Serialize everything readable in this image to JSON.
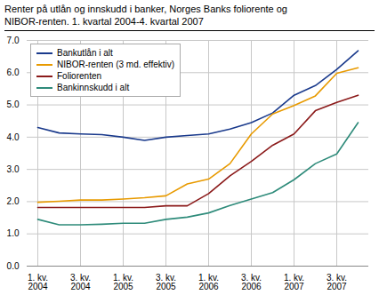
{
  "chart_data": {
    "type": "line",
    "title": "Renter på utlån og innskudd i banker, Norges Banks foliorente og",
    "subtitle": "NIBOR-renten. 1. kvartal 2004-4. kvartal 2007",
    "categories": [
      "1. kv.\n2004",
      null,
      "3. kv.\n2004",
      null,
      "1. kv.\n2005",
      null,
      "3. kv.\n2005",
      null,
      "1. kv.\n2006",
      null,
      "3. kv.\n2006",
      null,
      "1. kv.\n2007",
      null,
      "3. kv.\n2007",
      null
    ],
    "series": [
      {
        "name": "Bankutlån i alt",
        "color": "#1a3a8c",
        "values": [
          4.3,
          4.13,
          4.1,
          4.08,
          4.0,
          3.9,
          4.0,
          4.05,
          4.1,
          4.25,
          4.45,
          4.75,
          5.3,
          5.6,
          6.1,
          6.68
        ]
      },
      {
        "name": "NIBOR-renten (3 md. effektiv)",
        "color": "#e89a00",
        "values": [
          1.98,
          2.01,
          2.05,
          2.05,
          2.08,
          2.12,
          2.18,
          2.55,
          2.7,
          3.18,
          4.1,
          4.72,
          4.98,
          5.28,
          5.98,
          6.15
        ]
      },
      {
        "name": "Foliorenten",
        "color": "#8b1a1a",
        "values": [
          1.82,
          1.82,
          1.82,
          1.82,
          1.82,
          1.82,
          1.87,
          1.87,
          2.25,
          2.8,
          3.25,
          3.75,
          4.1,
          4.82,
          5.08,
          5.3
        ]
      },
      {
        "name": "Bankinnskudd i alt",
        "color": "#2e8b7a",
        "values": [
          1.45,
          1.28,
          1.28,
          1.3,
          1.33,
          1.33,
          1.45,
          1.52,
          1.65,
          1.88,
          2.08,
          2.28,
          2.68,
          3.18,
          3.48,
          4.45
        ]
      }
    ],
    "ylim": [
      0,
      7
    ],
    "yticks": [
      0,
      1,
      2,
      3,
      4,
      5,
      6,
      7
    ],
    "grid": true,
    "legend": "upper left"
  }
}
